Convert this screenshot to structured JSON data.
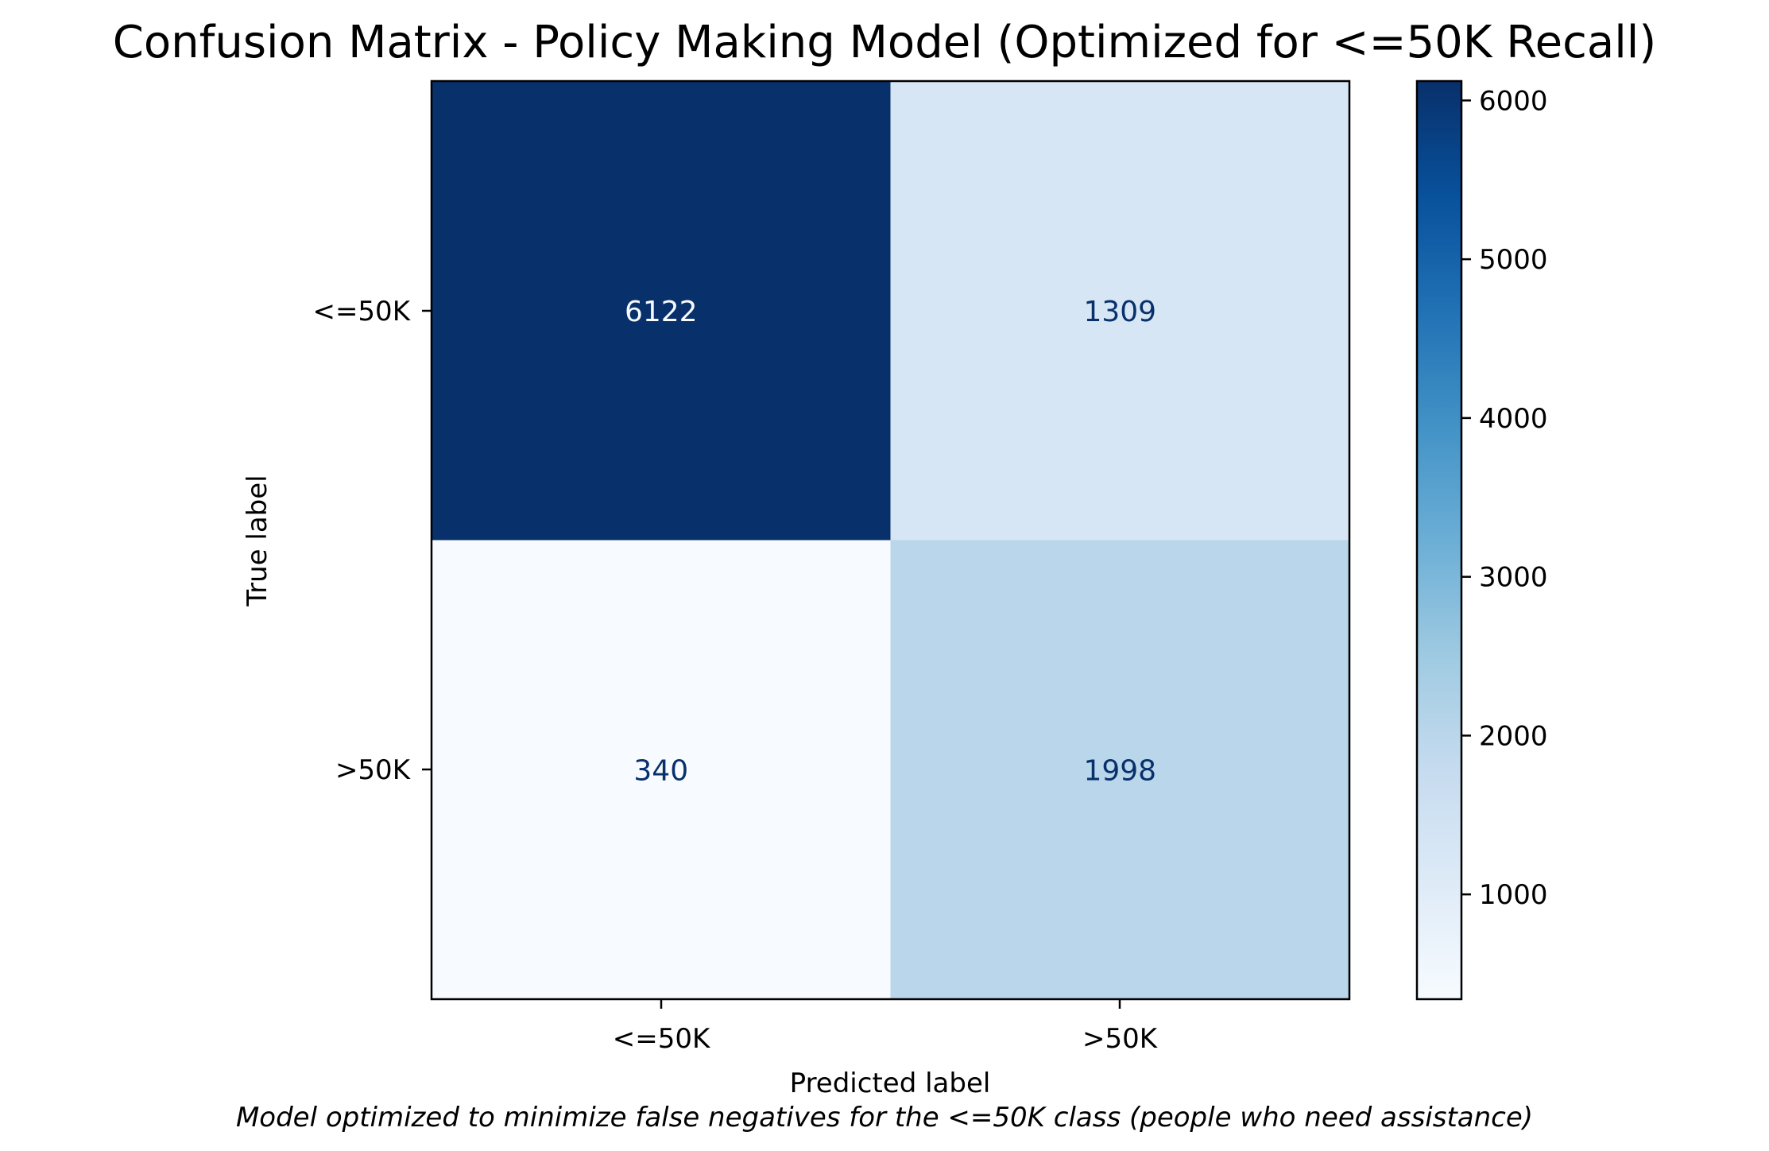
{
  "chart_data": {
    "type": "heatmap",
    "title": "Confusion Matrix - Policy Making Model (Optimized for <=50K Recall)",
    "xlabel": "Predicted label",
    "ylabel": "True label",
    "x_categories": [
      "<=50K",
      ">50K"
    ],
    "y_categories": [
      "<=50K",
      ">50K"
    ],
    "matrix": [
      [
        6122,
        1309
      ],
      [
        340,
        1998
      ]
    ],
    "colormap": "Blues",
    "colorbar": {
      "vmin": 340,
      "vmax": 6122,
      "ticks": [
        1000,
        2000,
        3000,
        4000,
        5000,
        6000
      ],
      "tick_labels": [
        "1000",
        "2000",
        "3000",
        "4000",
        "5000",
        "6000"
      ]
    },
    "caption": "Model optimized to minimize false negatives for the <=50K class (people who need assistance)"
  },
  "colors": {
    "light_text": "#f7fbff",
    "dark_text": "#08306b"
  }
}
